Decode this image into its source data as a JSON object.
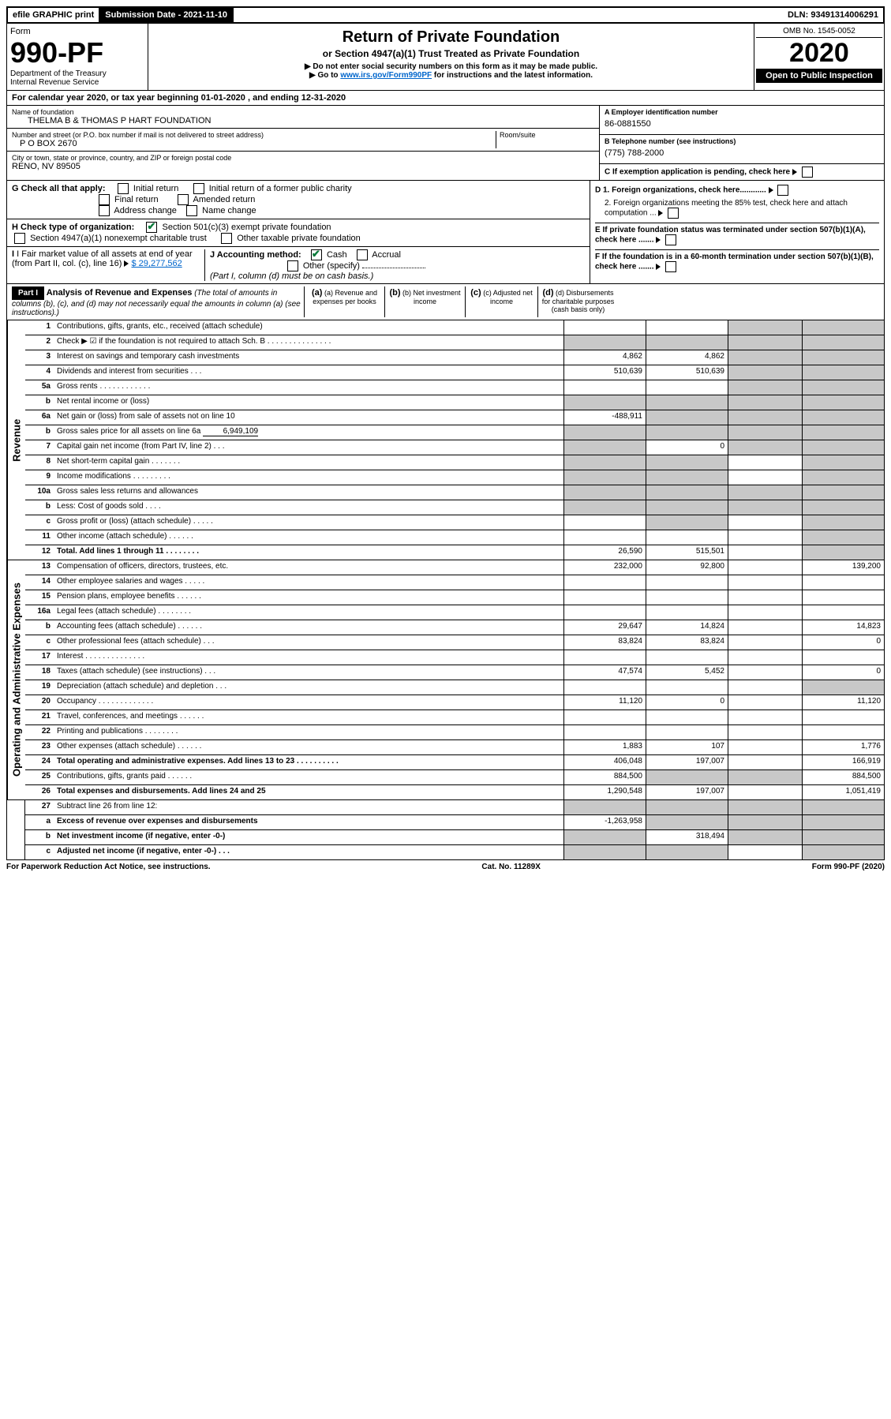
{
  "topbar": {
    "efile": "efile GRAPHIC print",
    "subdate_label": "Submission Date - 2021-11-10",
    "dln": "DLN: 93491314006291"
  },
  "header": {
    "form_label": "Form",
    "form_num": "990-PF",
    "dept": "Department of the Treasury",
    "irs": "Internal Revenue Service",
    "title": "Return of Private Foundation",
    "subtitle": "or Section 4947(a)(1) Trust Treated as Private Foundation",
    "note1": "▶ Do not enter social security numbers on this form as it may be made public.",
    "note2_pre": "▶ Go to ",
    "note2_link": "www.irs.gov/Form990PF",
    "note2_post": " for instructions and the latest information.",
    "omb": "OMB No. 1545-0052",
    "year": "2020",
    "inspect": "Open to Public Inspection"
  },
  "calyear": "For calendar year 2020, or tax year beginning 01-01-2020            , and ending 12-31-2020",
  "name_lbl": "Name of foundation",
  "name_val": "THELMA B & THOMAS P HART FOUNDATION",
  "addr_lbl": "Number and street (or P.O. box number if mail is not delivered to street address)",
  "addr_val": "P O BOX 2670",
  "room_lbl": "Room/suite",
  "city_lbl": "City or town, state or province, country, and ZIP or foreign postal code",
  "city_val": "RENO, NV  89505",
  "ein_lbl": "A Employer identification number",
  "ein_val": "86-0881550",
  "tel_lbl": "B Telephone number (see instructions)",
  "tel_val": "(775) 788-2000",
  "c_lbl": "C If exemption application is pending, check here",
  "d1_lbl": "D 1. Foreign organizations, check here............",
  "d2_lbl": "2. Foreign organizations meeting the 85% test, check here and attach computation ...",
  "e_lbl": "E If private foundation status was terminated under section 507(b)(1)(A), check here .......",
  "f_lbl": "F If the foundation is in a 60-month termination under section 507(b)(1)(B), check here .......",
  "g_lbl": "G Check all that apply:",
  "g_opts": [
    "Initial return",
    "Initial return of a former public charity",
    "Final return",
    "Amended return",
    "Address change",
    "Name change"
  ],
  "h_lbl": "H Check type of organization:",
  "h_opt1": "Section 501(c)(3) exempt private foundation",
  "h_opt2": "Section 4947(a)(1) nonexempt charitable trust",
  "h_opt3": "Other taxable private foundation",
  "i_lbl": "I Fair market value of all assets at end of year (from Part II, col. (c), line 16)",
  "i_val": "$  29,277,562",
  "j_lbl": "J Accounting method:",
  "j_opts": [
    "Cash",
    "Accrual",
    "Other (specify)"
  ],
  "j_note": "(Part I, column (d) must be on cash basis.)",
  "part1_label": "Part I",
  "part1_title": "Analysis of Revenue and Expenses",
  "part1_note": "(The total of amounts in columns (b), (c), and (d) may not necessarily equal the amounts in column (a) (see instructions).)",
  "col_a": "(a) Revenue and expenses per books",
  "col_b": "(b) Net investment income",
  "col_c": "(c) Adjusted net income",
  "col_d": "(d) Disbursements for charitable purposes (cash basis only)",
  "side_rev": "Revenue",
  "side_exp": "Operating and Administrative Expenses",
  "lines": {
    "l1": {
      "n": "1",
      "d": "Contributions, gifts, grants, etc., received (attach schedule)"
    },
    "l2": {
      "n": "2",
      "d": "Check ▶ ☑ if the foundation is not required to attach Sch. B   .   .   .   .   .   .   .   .   .   .   .   .   .   .   ."
    },
    "l3": {
      "n": "3",
      "d": "Interest on savings and temporary cash investments",
      "a": "4,862",
      "b": "4,862"
    },
    "l4": {
      "n": "4",
      "d": "Dividends and interest from securities   .   .   .",
      "a": "510,639",
      "b": "510,639"
    },
    "l5a": {
      "n": "5a",
      "d": "Gross rents   .   .   .   .   .   .   .   .   .   .   .   ."
    },
    "l5b": {
      "n": "b",
      "d": "Net rental income or (loss)"
    },
    "l6a": {
      "n": "6a",
      "d": "Net gain or (loss) from sale of assets not on line 10",
      "a": "-488,911"
    },
    "l6b": {
      "n": "b",
      "d": "Gross sales price for all assets on line 6a",
      "inline": "6,949,109"
    },
    "l7": {
      "n": "7",
      "d": "Capital gain net income (from Part IV, line 2)   .   .   .",
      "b": "0"
    },
    "l8": {
      "n": "8",
      "d": "Net short-term capital gain   .   .   .   .   .   .   ."
    },
    "l9": {
      "n": "9",
      "d": "Income modifications   .   .   .   .   .   .   .   .   ."
    },
    "l10a": {
      "n": "10a",
      "d": "Gross sales less returns and allowances"
    },
    "l10b": {
      "n": "b",
      "d": "Less: Cost of goods sold   .   .   .   ."
    },
    "l10c": {
      "n": "c",
      "d": "Gross profit or (loss) (attach schedule)   .   .   .   .   ."
    },
    "l11": {
      "n": "11",
      "d": "Other income (attach schedule)   .   .   .   .   .   ."
    },
    "l12": {
      "n": "12",
      "d": "Total. Add lines 1 through 11   .   .   .   .   .   .   .   .",
      "a": "26,590",
      "b": "515,501"
    },
    "l13": {
      "n": "13",
      "d": "Compensation of officers, directors, trustees, etc.",
      "a": "232,000",
      "b": "92,800",
      "e": "139,200"
    },
    "l14": {
      "n": "14",
      "d": "Other employee salaries and wages   .   .   .   .   ."
    },
    "l15": {
      "n": "15",
      "d": "Pension plans, employee benefits   .   .   .   .   .   ."
    },
    "l16a": {
      "n": "16a",
      "d": "Legal fees (attach schedule)   .   .   .   .   .   .   .   ."
    },
    "l16b": {
      "n": "b",
      "d": "Accounting fees (attach schedule)   .   .   .   .   .   .",
      "a": "29,647",
      "b": "14,824",
      "e": "14,823"
    },
    "l16c": {
      "n": "c",
      "d": "Other professional fees (attach schedule)   .   .   .",
      "a": "83,824",
      "b": "83,824",
      "e": "0"
    },
    "l17": {
      "n": "17",
      "d": "Interest   .   .   .   .   .   .   .   .   .   .   .   .   .   ."
    },
    "l18": {
      "n": "18",
      "d": "Taxes (attach schedule) (see instructions)   .   .   .",
      "a": "47,574",
      "b": "5,452",
      "e": "0"
    },
    "l19": {
      "n": "19",
      "d": "Depreciation (attach schedule) and depletion   .   .   ."
    },
    "l20": {
      "n": "20",
      "d": "Occupancy   .   .   .   .   .   .   .   .   .   .   .   .   .",
      "a": "11,120",
      "b": "0",
      "e": "11,120"
    },
    "l21": {
      "n": "21",
      "d": "Travel, conferences, and meetings   .   .   .   .   .   ."
    },
    "l22": {
      "n": "22",
      "d": "Printing and publications   .   .   .   .   .   .   .   ."
    },
    "l23": {
      "n": "23",
      "d": "Other expenses (attach schedule)   .   .   .   .   .   .",
      "a": "1,883",
      "b": "107",
      "e": "1,776"
    },
    "l24": {
      "n": "24",
      "d": "Total operating and administrative expenses. Add lines 13 to 23   .   .   .   .   .   .   .   .   .   .",
      "a": "406,048",
      "b": "197,007",
      "e": "166,919"
    },
    "l25": {
      "n": "25",
      "d": "Contributions, gifts, grants paid   .   .   .   .   .   .",
      "a": "884,500",
      "e": "884,500"
    },
    "l26": {
      "n": "26",
      "d": "Total expenses and disbursements. Add lines 24 and 25",
      "a": "1,290,548",
      "b": "197,007",
      "e": "1,051,419"
    },
    "l27": {
      "n": "27",
      "d": "Subtract line 26 from line 12:"
    },
    "l27a": {
      "n": "a",
      "d": "Excess of revenue over expenses and disbursements",
      "a": "-1,263,958"
    },
    "l27b": {
      "n": "b",
      "d": "Net investment income (if negative, enter -0-)",
      "b": "318,494"
    },
    "l27c": {
      "n": "c",
      "d": "Adjusted net income (if negative, enter -0-)   .   .   ."
    }
  },
  "footer": {
    "left": "For Paperwork Reduction Act Notice, see instructions.",
    "mid": "Cat. No. 11289X",
    "right": "Form 990-PF (2020)"
  }
}
